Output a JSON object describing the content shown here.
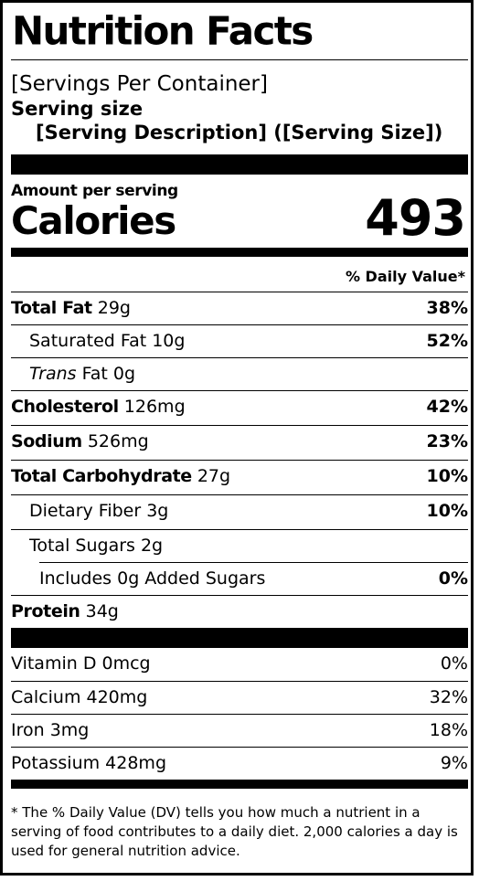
{
  "title": "Nutrition Facts",
  "servings_per_container": "[Servings Per Container]",
  "serving_size_label": "Serving size",
  "serving_description": "[Serving Description] ([Serving Size])",
  "amount_per_serving": "Amount per serving",
  "calories_label": "Calories",
  "calories_value": "493",
  "daily_value_header": "% Daily Value*",
  "nutrients": [
    {
      "name": "Total Fat",
      "amount": " 29g",
      "dv": "38%"
    },
    {
      "name": "Saturated Fat 10g",
      "amount": "",
      "dv": "52%"
    },
    {
      "name": "Trans",
      "amount": " Fat 0g",
      "dv": ""
    },
    {
      "name": "Cholesterol",
      "amount": " 126mg",
      "dv": "42%"
    },
    {
      "name": "Sodium",
      "amount": " 526mg",
      "dv": "23%"
    },
    {
      "name": "Total Carbohydrate",
      "amount": " 27g",
      "dv": "10%"
    },
    {
      "name": "Dietary Fiber 3g",
      "amount": "",
      "dv": "10%"
    },
    {
      "name": "Total Sugars 2g",
      "amount": "",
      "dv": ""
    },
    {
      "name": "Includes 0g Added Sugars",
      "amount": "",
      "dv": "0%"
    },
    {
      "name": "Protein",
      "amount": " 34g",
      "dv": ""
    }
  ],
  "vitamins": [
    {
      "name": "Vitamin D 0mcg",
      "dv": "0%"
    },
    {
      "name": "Calcium 420mg",
      "dv": "32%"
    },
    {
      "name": "Iron 3mg",
      "dv": "18%"
    },
    {
      "name": "Potassium 428mg",
      "dv": "9%"
    }
  ],
  "footnote": "* The % Daily Value (DV) tells you how much a nutrient in a serving of food contributes to a daily diet. 2,000 calories a day is used for general nutrition advice."
}
